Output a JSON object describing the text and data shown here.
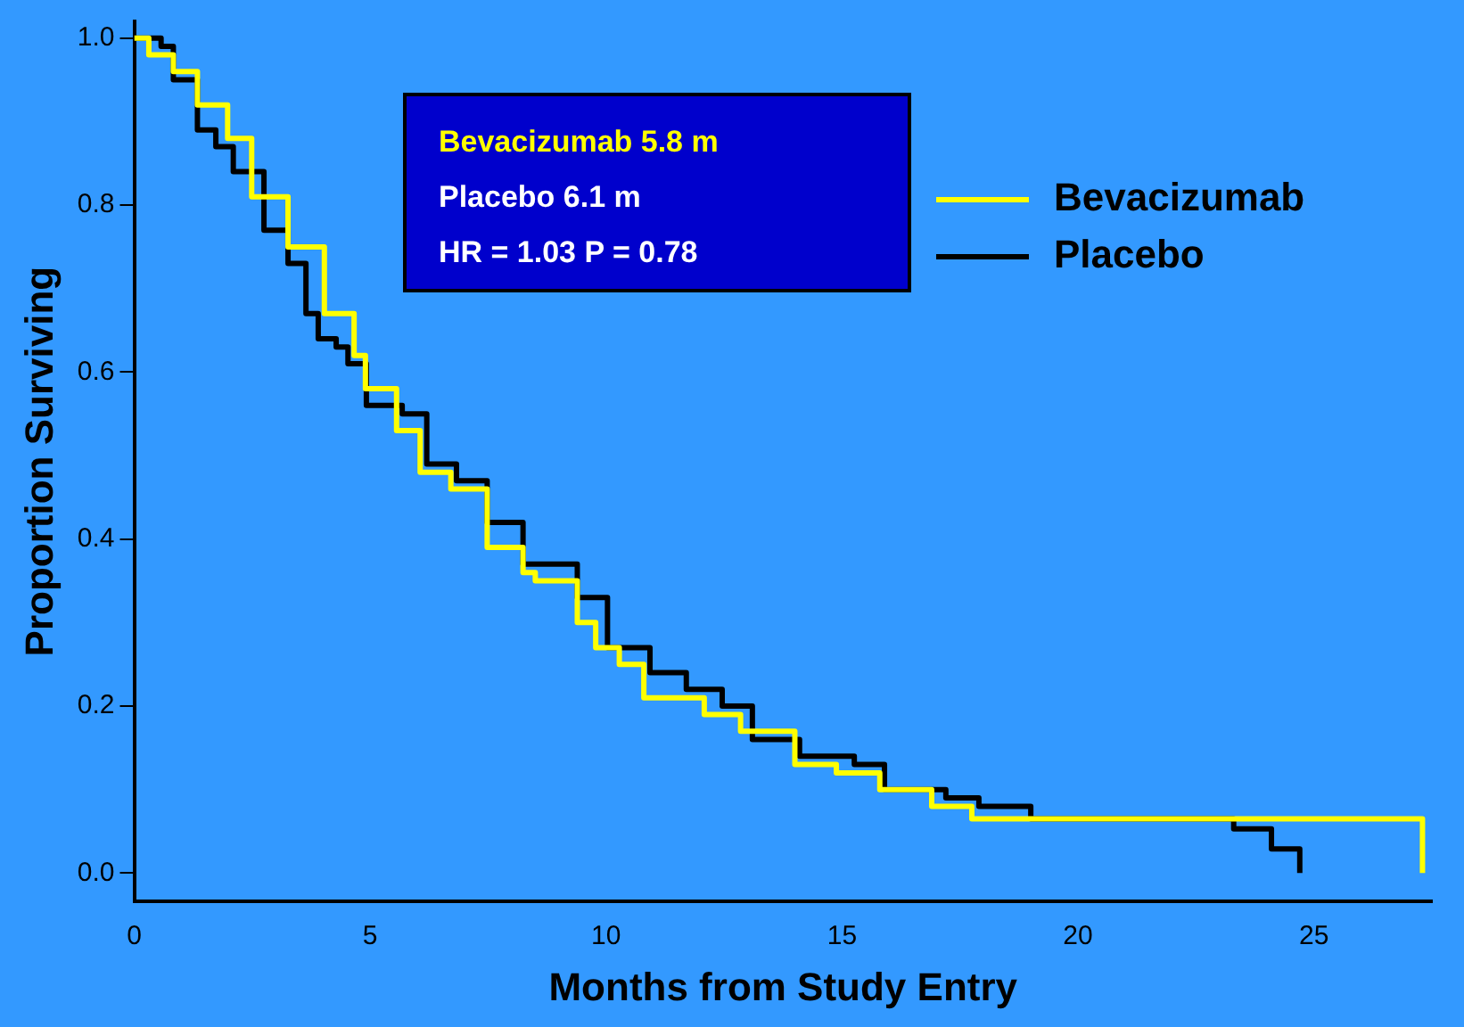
{
  "chart_data": {
    "type": "step",
    "xlabel": "Months from Study Entry",
    "ylabel": "Proportion Surviving",
    "xlim": [
      0,
      27.5
    ],
    "xticks": [
      0,
      5,
      10,
      15,
      20,
      25
    ],
    "ylim": [
      -0.034,
      1.02
    ],
    "yticks": [
      {
        "value": 0,
        "label": "0.0"
      },
      0.2,
      0.4,
      0.6,
      0.8,
      {
        "value": 1,
        "label": "1.0"
      }
    ],
    "grid": false,
    "legend": "top right",
    "line_style": "solid",
    "marker": "none",
    "annotations": [
      "Bevacizumab 5.8 m",
      "Placebo 6.1 m",
      "HR = 1.03 P = 0.78"
    ],
    "series": [
      {
        "name": "Bevacizumab",
        "color": "#ffff00",
        "x": [
          0,
          0.31,
          0.83,
          1.34,
          1.98,
          2.49,
          3.26,
          4.03,
          4.66,
          4.9,
          5.56,
          6.06,
          6.71,
          7.48,
          8.24,
          8.5,
          9.39,
          9.78,
          10.28,
          10.8,
          12.08,
          12.85,
          14.0,
          14.88,
          15.8,
          16.9,
          17.75,
          27.3
        ],
        "values": [
          1.0,
          0.98,
          0.96,
          0.92,
          0.88,
          0.81,
          0.75,
          0.67,
          0.62,
          0.58,
          0.53,
          0.48,
          0.46,
          0.39,
          0.36,
          0.35,
          0.3,
          0.27,
          0.25,
          0.21,
          0.19,
          0.17,
          0.13,
          0.12,
          0.1,
          0.08,
          0.065,
          0
        ]
      },
      {
        "name": "Placebo",
        "color": "#000000",
        "x": [
          0,
          0.57,
          0.83,
          1.34,
          1.73,
          2.1,
          2.75,
          3.26,
          3.64,
          3.9,
          4.28,
          4.53,
          4.92,
          5.68,
          6.2,
          6.83,
          7.48,
          8.24,
          9.39,
          10.03,
          10.93,
          11.7,
          12.46,
          13.1,
          14.1,
          15.26,
          15.9,
          17.2,
          17.9,
          19.0,
          23.3,
          24.1,
          24.7
        ],
        "values": [
          1.0,
          0.99,
          0.95,
          0.89,
          0.87,
          0.84,
          0.77,
          0.73,
          0.67,
          0.64,
          0.63,
          0.61,
          0.56,
          0.55,
          0.49,
          0.47,
          0.42,
          0.37,
          0.33,
          0.27,
          0.24,
          0.22,
          0.2,
          0.16,
          0.14,
          0.13,
          0.1,
          0.09,
          0.08,
          0.065,
          0.053,
          0.029,
          0
        ]
      }
    ]
  }
}
